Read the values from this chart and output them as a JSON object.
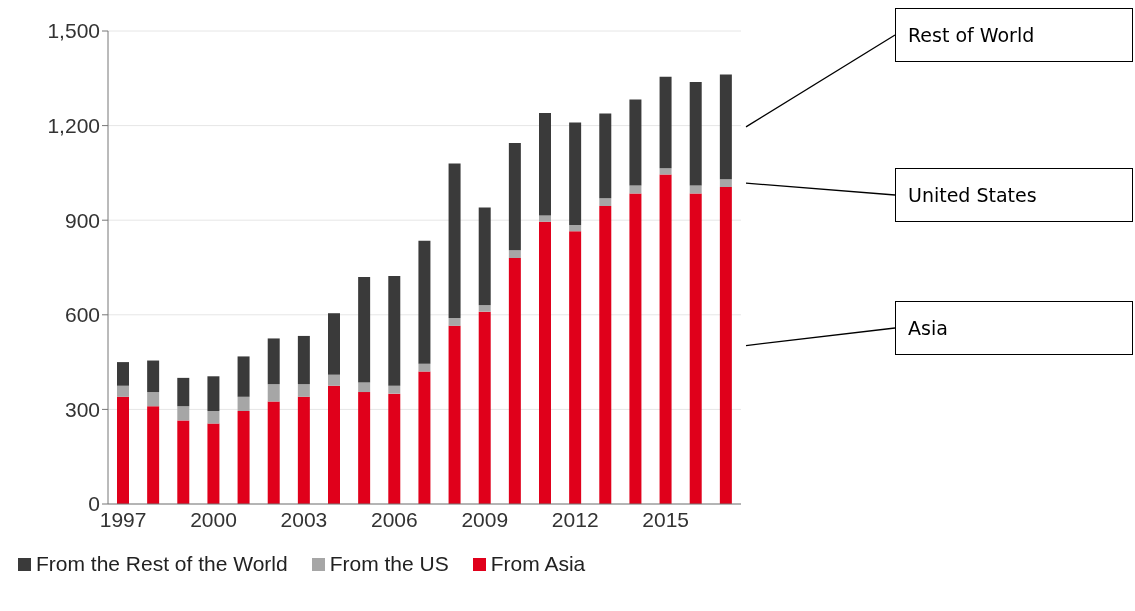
{
  "chart_data": {
    "type": "bar",
    "stacked": true,
    "categories": [
      "1997",
      null,
      null,
      "2000",
      null,
      null,
      "2003",
      null,
      null,
      "2006",
      null,
      null,
      "2009",
      null,
      null,
      "2012",
      null,
      null,
      "2015",
      null,
      null
    ],
    "series": [
      {
        "name": "From Asia",
        "color": "#e0001b",
        "values": [
          340,
          310,
          265,
          255,
          295,
          325,
          340,
          375,
          355,
          350,
          420,
          565,
          610,
          780,
          895,
          865,
          945,
          985,
          1045,
          985,
          1005
        ]
      },
      {
        "name": "From the US",
        "color": "#a6a6a6",
        "values": [
          35,
          45,
          45,
          40,
          45,
          55,
          40,
          35,
          30,
          25,
          25,
          25,
          20,
          25,
          20,
          20,
          25,
          25,
          20,
          25,
          25
        ]
      },
      {
        "name": "From the Rest of the World",
        "color": "#3a3a3a",
        "values": [
          75,
          100,
          90,
          110,
          128,
          145,
          153,
          195,
          335,
          348,
          390,
          490,
          310,
          340,
          325,
          325,
          268,
          273,
          290,
          328,
          332
        ]
      }
    ],
    "ylim": [
      0,
      1500
    ],
    "yticks": [
      0,
      300,
      600,
      900,
      {
        "value": 1200,
        "label": "1,200"
      },
      {
        "value": 1500,
        "label": "1,500"
      }
    ],
    "grid": "y",
    "legend": "bottom left",
    "annotations": [
      "Rest of World",
      "United States",
      "Asia"
    ]
  }
}
